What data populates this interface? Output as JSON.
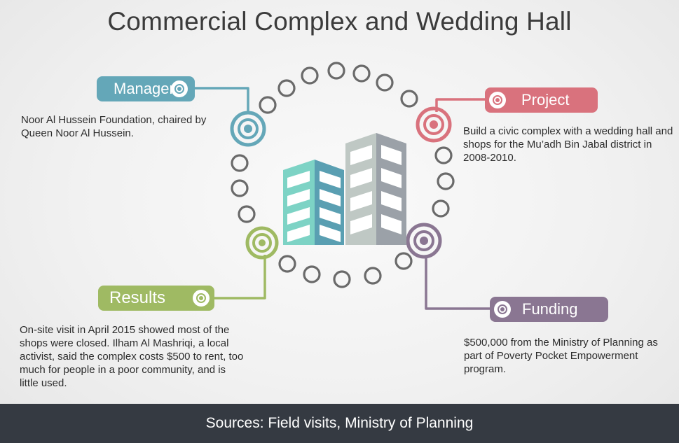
{
  "title": "Commercial Complex and Wedding Hall",
  "manager": {
    "label": "Manager",
    "text": "Noor Al Hussein Foundation, chaired by Queen Noor Al Hussein.",
    "color": "#64a7b8"
  },
  "project": {
    "label": "Project",
    "text": "Build a civic complex with a wedding hall and shops for the Mu’adh Bin Jabal district in 2008-2010.",
    "color": "#d9727d"
  },
  "results": {
    "label": "Results",
    "text": "On-site visit in April 2015 showed most of the shops were closed. Ilham Al Mashriqi, a local activist, said the complex costs $500 to rent, too much for people in a poor community, and is little used.",
    "color": "#9fba63"
  },
  "funding": {
    "label": "Funding",
    "text": "$500,000 from the Ministry of Planning as part of Poverty Pocket Empowerment program.",
    "color": "#8a7692"
  },
  "footer": "Sources: Field visits, Ministry of Planning",
  "icons": [
    "target-icon",
    "building-icon"
  ],
  "colors": {
    "footer_bg": "#353a42",
    "ring_stroke": "#6a6a6a",
    "building_left": "#7fd2c4",
    "building_right": "#a6adb2"
  }
}
